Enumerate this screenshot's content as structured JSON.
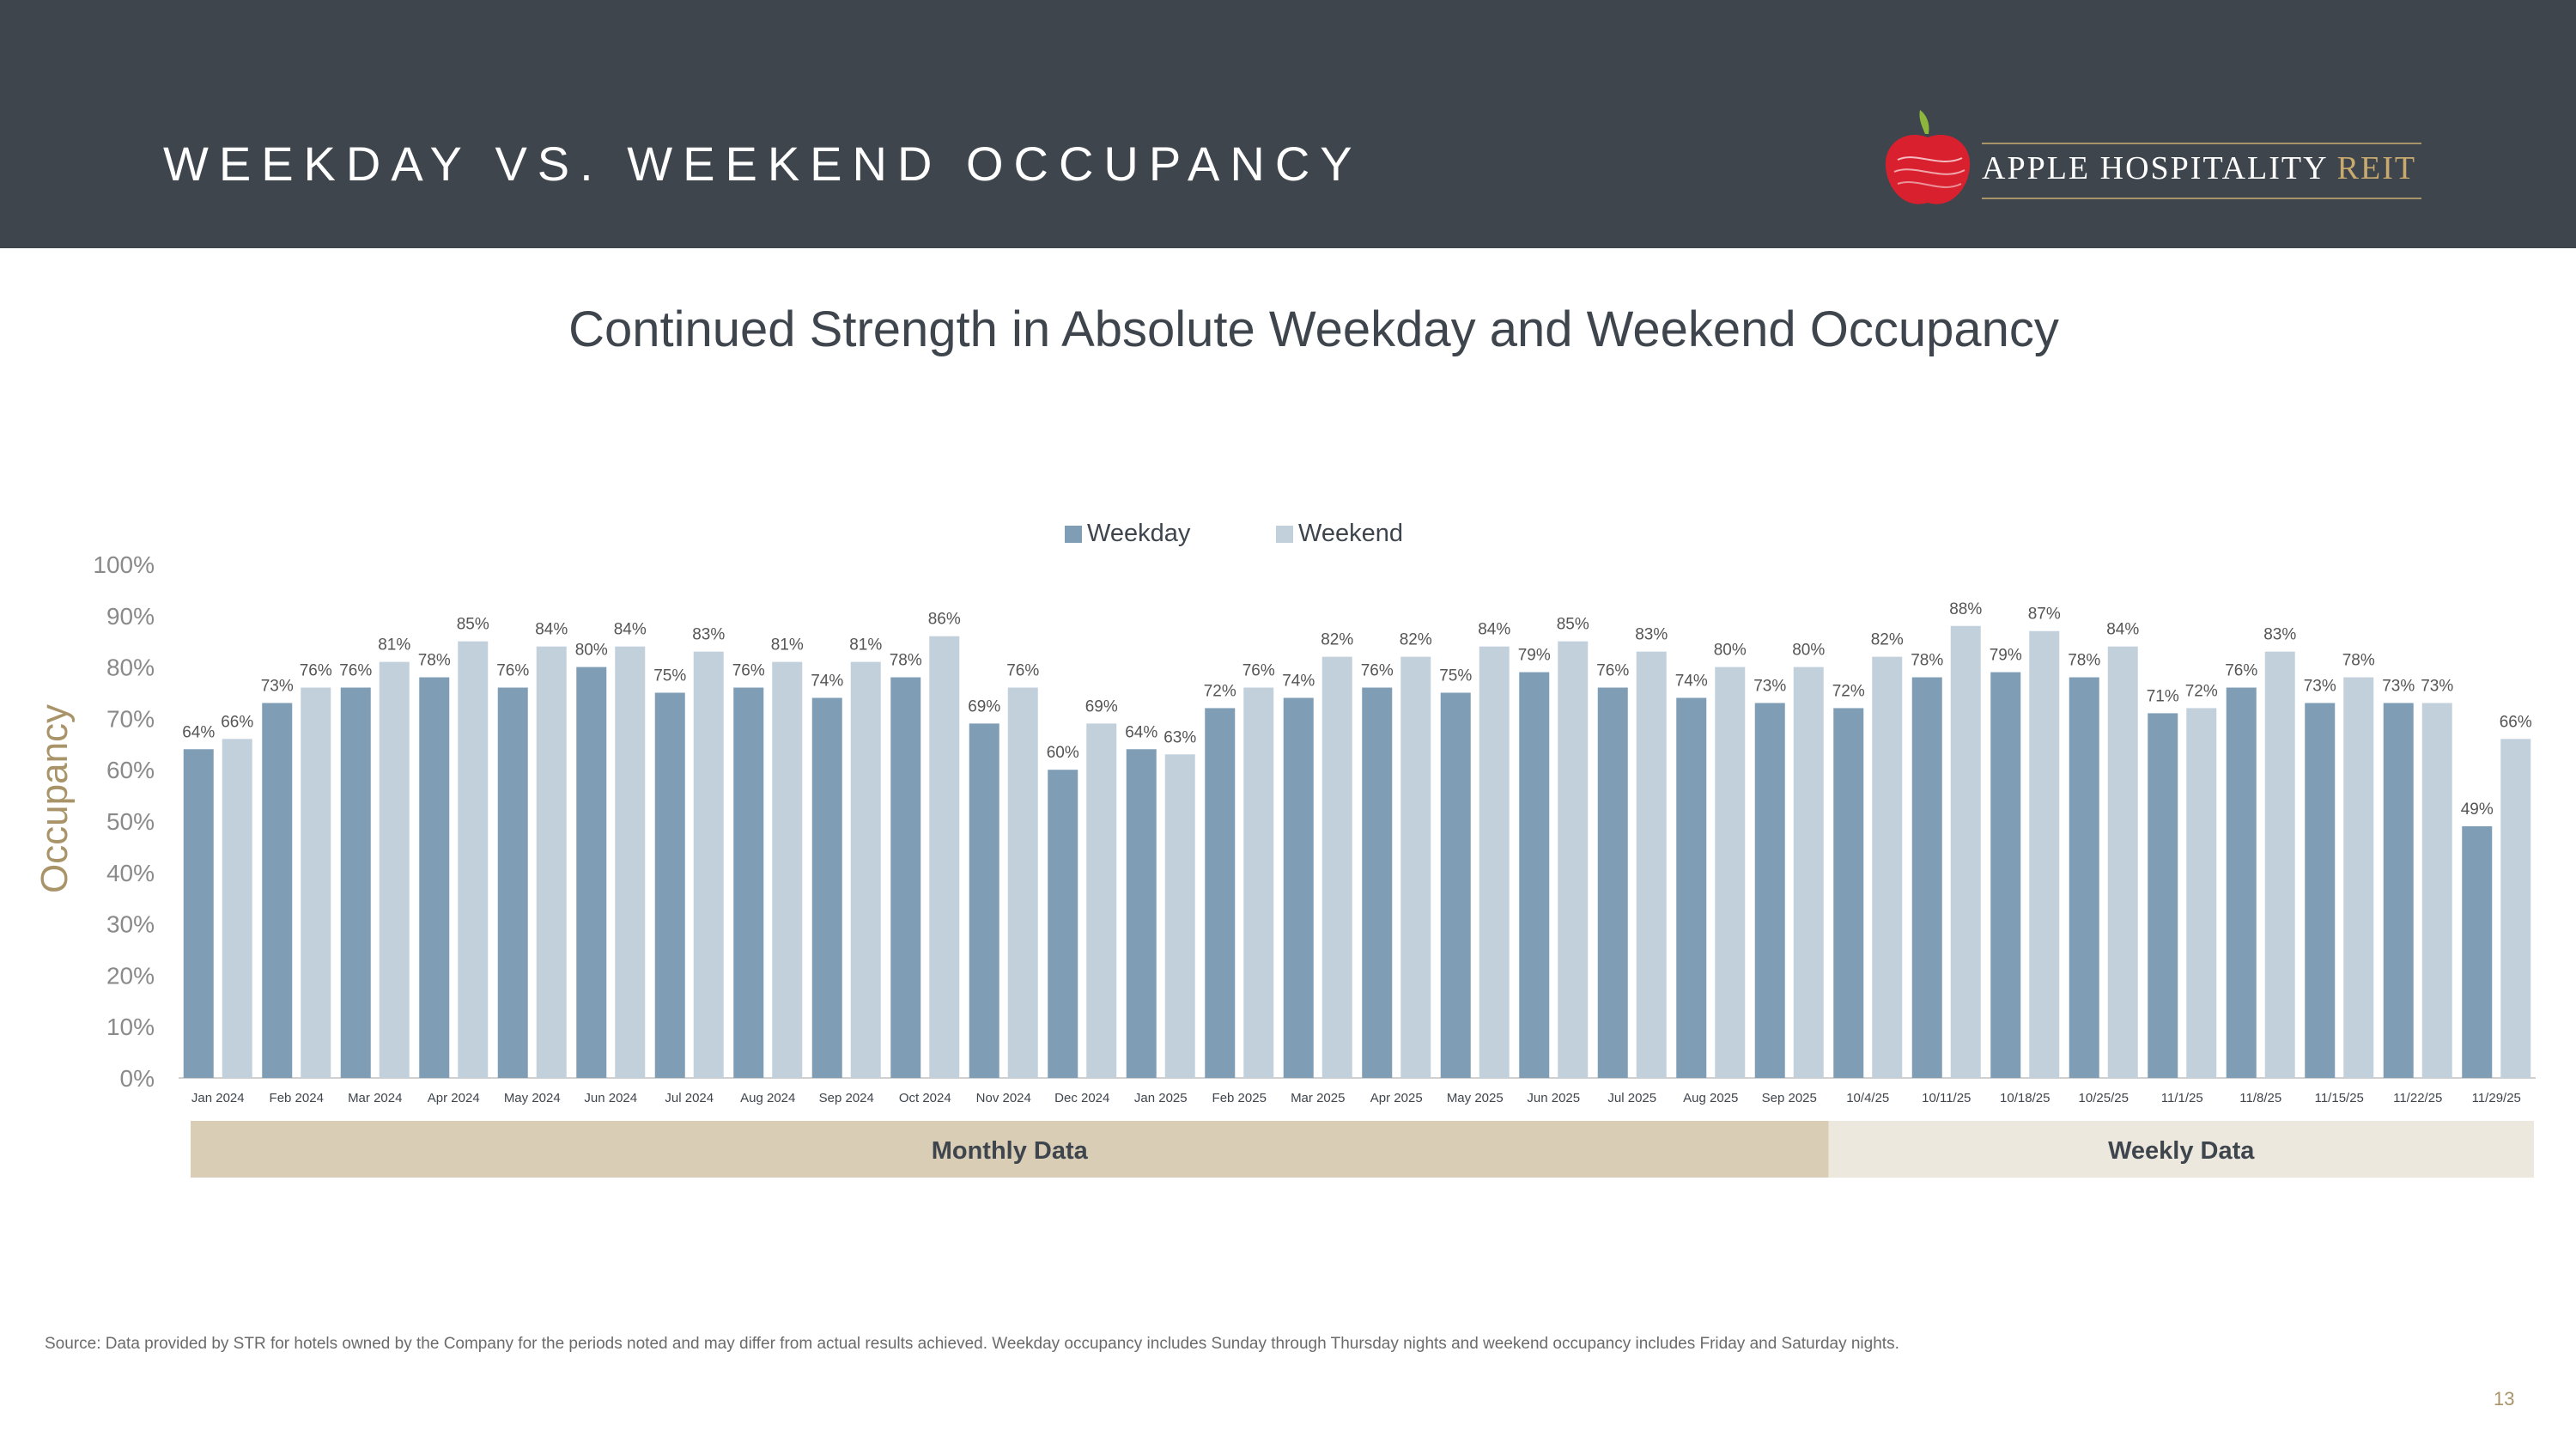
{
  "header": {
    "title": "WEEKDAY VS. WEEKEND OCCUPANCY",
    "logo_name": "APPLE HOSPITALITY",
    "logo_reit": "REIT"
  },
  "subtitle": "Continued Strength in Absolute Weekday and Weekend Occupancy",
  "colors": {
    "header_bg": "#3e454d",
    "weekday": "#7f9db5",
    "weekend": "#c2d0dc",
    "monthly_band": "#d9cdb6",
    "weekly_band": "#ede8dd",
    "accent_gold": "#a89468",
    "apple_red": "#d9202f"
  },
  "chart_data": {
    "type": "bar",
    "title": "",
    "ylabel": "Occupancy",
    "xlabel": "",
    "ylim": [
      0,
      100
    ],
    "yticks": [
      0,
      10,
      20,
      30,
      40,
      50,
      60,
      70,
      80,
      90,
      100
    ],
    "ytick_labels": [
      "0%",
      "10%",
      "20%",
      "30%",
      "40%",
      "50%",
      "60%",
      "70%",
      "80%",
      "90%",
      "100%"
    ],
    "legend": {
      "position": "top-center"
    },
    "categories": [
      "Jan 2024",
      "Feb 2024",
      "Mar 2024",
      "Apr 2024",
      "May 2024",
      "Jun 2024",
      "Jul 2024",
      "Aug 2024",
      "Sep 2024",
      "Oct 2024",
      "Nov 2024",
      "Dec 2024",
      "Jan 2025",
      "Feb 2025",
      "Mar 2025",
      "Apr 2025",
      "May 2025",
      "Jun 2025",
      "Jul 2025",
      "Aug 2025",
      "Sep 2025",
      "10/4/25",
      "10/11/25",
      "10/18/25",
      "10/25/25",
      "11/1/25",
      "11/8/25",
      "11/15/25",
      "11/22/25",
      "11/29/25"
    ],
    "series": [
      {
        "name": "Weekday",
        "values": [
          64,
          73,
          76,
          78,
          76,
          80,
          75,
          76,
          74,
          78,
          69,
          60,
          64,
          72,
          74,
          76,
          75,
          79,
          76,
          74,
          73,
          72,
          78,
          79,
          78,
          71,
          76,
          73,
          73,
          49
        ]
      },
      {
        "name": "Weekend",
        "values": [
          66,
          76,
          81,
          85,
          84,
          84,
          83,
          81,
          81,
          86,
          76,
          69,
          63,
          76,
          82,
          82,
          84,
          85,
          83,
          80,
          80,
          82,
          88,
          87,
          84,
          72,
          83,
          78,
          73,
          66
        ]
      }
    ],
    "value_suffix": "%",
    "groups": [
      {
        "label": "Monthly Data",
        "count": 21
      },
      {
        "label": "Weekly Data",
        "count": 9
      }
    ]
  },
  "footnote": "Source:  Data provided by STR for hotels owned by the Company for the periods noted and may differ from actual results achieved. Weekday occupancy includes Sunday through Thursday nights and weekend occupancy includes Friday and Saturday nights.",
  "page_number": "13"
}
